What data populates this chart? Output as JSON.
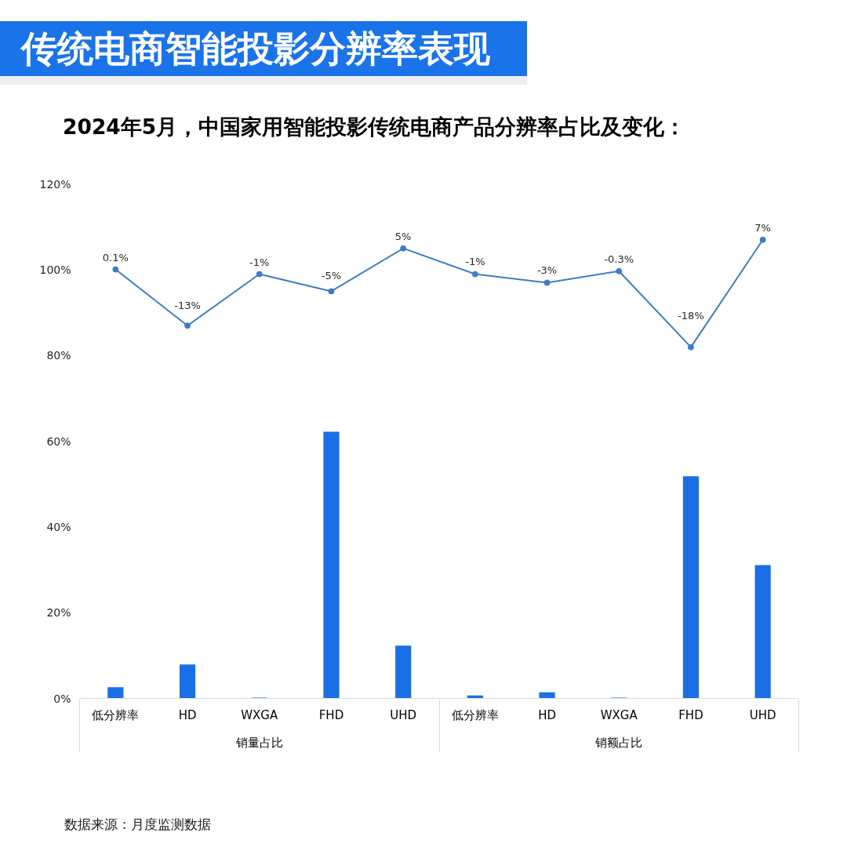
{
  "chart_data": {
    "type": "bar",
    "title": "传统电商智能投影分辨率表现",
    "subtitle": "2024年5月，中国家用智能投影传统电商产品分辨率占比及变化：",
    "categories": [
      "低分辨率",
      "HD",
      "WXGA",
      "FHD",
      "UHD",
      "低分辨率",
      "HD",
      "WXGA",
      "FHD",
      "UHD"
    ],
    "series": [
      {
        "color": "#1a6fe6",
        "values": [
          2.6,
          7.9,
          0.2,
          62.2,
          12.3,
          0.7,
          1.4,
          0.2,
          51.8,
          31.1
        ]
      },
      {
        "type": "line",
        "axis": "y2",
        "color": "#3f7cc4",
        "marker": "circle",
        "values": [
          0.1,
          -13,
          -1,
          -5,
          5,
          -1,
          -3,
          -0.3,
          -18,
          7
        ],
        "value_labels": [
          "0.1%",
          "-13%",
          "-1%",
          "-5%",
          "5%",
          "-1%",
          "-3%",
          "-0.3%",
          "-18%",
          "7%"
        ]
      }
    ],
    "ylim": [
      0,
      120
    ],
    "yticks": [
      {
        "value": 0,
        "label": "0%"
      },
      {
        "value": 20,
        "label": "20%"
      },
      {
        "value": 40,
        "label": "40%"
      },
      {
        "value": 60,
        "label": "60%"
      },
      {
        "value": 80,
        "label": "80%"
      },
      {
        "value": 100,
        "label": "100%"
      },
      {
        "value": 120,
        "label": "120%"
      }
    ],
    "grid": false,
    "annotations": [
      "销量占比",
      "销额占比",
      "数据来源：月度监测数据"
    ]
  }
}
